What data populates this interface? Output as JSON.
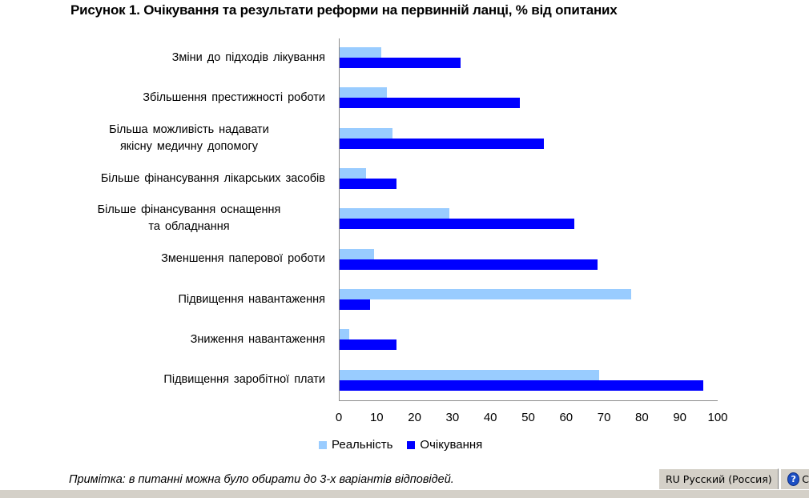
{
  "title": "Рисунок 1. Очікування та результати реформи на первинній ланці, % від опитаних",
  "chart_data": {
    "type": "bar",
    "orientation": "horizontal",
    "title": "Рисунок 1. Очікування та результати реформи на первинній ланці, % від опитаних",
    "categories": [
      "Зміни до підходів лікування",
      "Збільшення престижності роботи",
      "Більша можливість надавати якісну медичну допомогу",
      "Більше фінансування лікарських засобів",
      "Більше фінансування оснащення та обладнання",
      "Зменшення паперової роботи",
      "Підвищення навантаження",
      "Зниження навантаження",
      "Підвищення заробітної плати"
    ],
    "category_lines": [
      [
        "Зміни до підходів лікування"
      ],
      [
        "Збільшення  престижності  роботи"
      ],
      [
        "Більша можливість надавати",
        "якісну медичну допомогу"
      ],
      [
        "Більше фінансування  лікарських засобів"
      ],
      [
        "Більше фінансування  оснащення",
        "та обладнання"
      ],
      [
        "Зменшення  паперової роботи"
      ],
      [
        "Підвищення  навантаження"
      ],
      [
        "Зниження  навантаження"
      ],
      [
        "Підвищення  заробітної плати"
      ]
    ],
    "series": [
      {
        "name": "Реальність",
        "color": "#99ccff",
        "values": [
          11,
          12.5,
          14,
          7,
          29,
          9,
          77,
          2.5,
          68.5
        ]
      },
      {
        "name": "Очікування",
        "color": "#0000ff",
        "values": [
          32,
          47.5,
          54,
          15,
          62,
          68,
          8,
          15,
          96
        ]
      }
    ],
    "xlabel": "",
    "ylabel": "",
    "xlim": [
      0,
      100
    ],
    "xticks": [
      "0",
      "10",
      "20",
      "30",
      "40",
      "50",
      "60",
      "70",
      "80",
      "90",
      "100"
    ],
    "grid": false,
    "legend_position": "bottom"
  },
  "legend": [
    {
      "label": "Реальність",
      "color": "#99ccff"
    },
    {
      "label": "Очікування",
      "color": "#0000ff"
    }
  ],
  "note": "Примітка: в питанні можна було обирати до 3-х варіантів відповідей.",
  "taskbar": {
    "language": "RU Русский (Россия)",
    "help_glyph": "?",
    "help_text": "С"
  }
}
